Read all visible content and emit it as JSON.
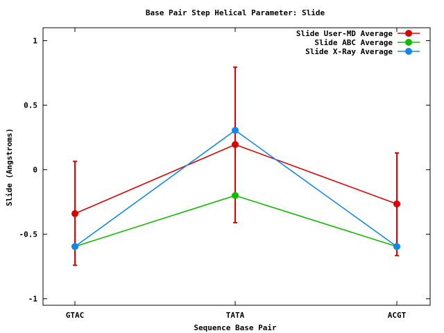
{
  "chart_data": {
    "type": "line",
    "title": "Base Pair Step Helical Parameter: Slide",
    "xlabel": "Sequence Base Pair",
    "ylabel": "Slide (Angstroms)",
    "categories": [
      "GTAC",
      "TATA",
      "ACGT"
    ],
    "ylim": [
      -1.05,
      1.1
    ],
    "yticks": [
      1,
      0.5,
      0,
      -0.5,
      -1
    ],
    "ytick_labels": [
      "1",
      "0.5",
      "0",
      "-0.5",
      "-1"
    ],
    "legend_position": "top-right",
    "grid": false,
    "series": [
      {
        "name": "Slide User-MD Average",
        "color": "#dd0000",
        "values": [
          -0.34,
          0.195,
          -0.265
        ],
        "error_low": [
          -0.74,
          -0.41,
          -0.665
        ],
        "error_high": [
          0.065,
          0.795,
          0.13
        ]
      },
      {
        "name": "Slide ABC Average",
        "color": "#11bb00",
        "values": [
          -0.595,
          -0.2,
          -0.595
        ]
      },
      {
        "name": "Slide X-Ray Average",
        "color": "#1188ee",
        "values": [
          -0.595,
          0.305,
          -0.595
        ]
      }
    ]
  }
}
